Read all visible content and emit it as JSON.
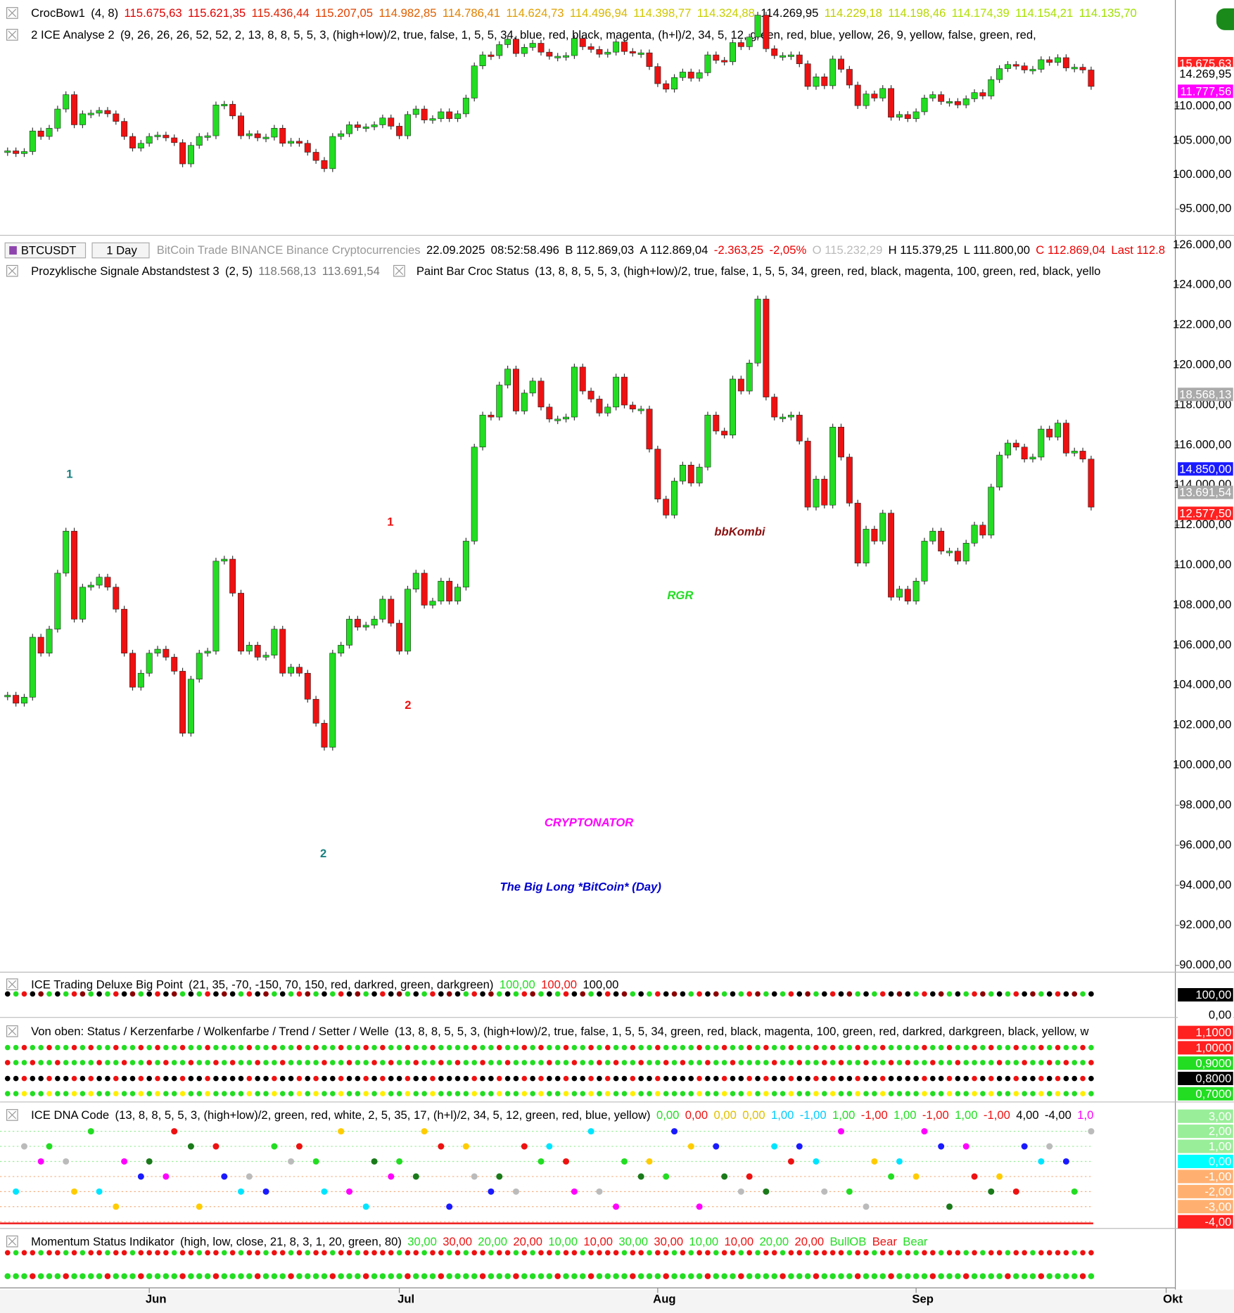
{
  "header": {
    "crocbow": {
      "name": "CrocBow1",
      "params": "(4, 8)",
      "values": [
        "115.675,63",
        "115.621,35",
        "115.436,44",
        "115.207,05",
        "114.982,85",
        "114.786,41",
        "114.624,73",
        "114.496,94",
        "114.398,77",
        "114.324,88",
        "114.269,95",
        "114.229,18",
        "114.198,46",
        "114.174,39",
        "114.154,21",
        "114.135,70"
      ]
    },
    "ice_analyse": {
      "name": "2 ICE Analyse 2",
      "params": "(9, 26, 26, 26, 52, 52, 2, 13, 8, 8, 5, 5, 3, (high+low)/2, true, false, 1, 5, 5, 34, blue, red, black, magenta, (h+l)/2, 34, 5, 12, green, red, blue, yellow, 26, 9, yellow, false, green, red,"
    },
    "price_tags": [
      "15.675,63",
      "14.269,95",
      "11.777,56"
    ]
  },
  "symbol_bar": {
    "symbol": "BTCUSDT",
    "interval": "1 Day",
    "description": "BitCoin Trade BINANCE Binance Cryptocurrencies",
    "date": "22.09.2025",
    "time": "08:52:58.496",
    "bid": "B 112.869,03",
    "ask": "A 112.869,04",
    "change": "-2.363,25",
    "change_pct": "-2,05%",
    "open": "O 115.232,29",
    "high": "H 115.379,25",
    "low": "L 111.800,00",
    "close": "C 112.869,04",
    "last": "Last 112.8"
  },
  "indicators": {
    "prozyklisch": {
      "name": "Prozyklische Signale Abstandstest 3",
      "params": "(2, 5)",
      "values": [
        "118.568,13",
        "113.691,54"
      ]
    },
    "paint_bar": {
      "name": "Paint Bar Croc Status",
      "params": "(13, 8, 8, 5, 5, 3, (high+low)/2, true, false, 1, 5, 5, 34, green, red, black, magenta, 100, green, red, black, yello"
    }
  },
  "chart_data": {
    "type": "candlestick",
    "categories": [
      null,
      null,
      null,
      null,
      null,
      null,
      null,
      null,
      null,
      null,
      null,
      null,
      null,
      null,
      null,
      null,
      null,
      "Jun",
      null,
      null,
      null,
      null,
      null,
      null,
      null,
      null,
      null,
      null,
      null,
      null,
      null,
      null,
      null,
      null,
      null,
      null,
      null,
      null,
      null,
      null,
      null,
      null,
      null,
      null,
      null,
      null,
      null,
      "Jul",
      null,
      null,
      null,
      null,
      null,
      null,
      null,
      null,
      null,
      null,
      null,
      null,
      null,
      null,
      null,
      null,
      null,
      null,
      null,
      null,
      null,
      null,
      null,
      null,
      null,
      null,
      null,
      null,
      null,
      null,
      "Aug",
      null,
      null,
      null,
      null,
      null,
      null,
      null,
      null,
      null,
      null,
      null,
      null,
      null,
      null,
      null,
      null,
      null,
      null,
      null,
      null,
      null,
      null,
      null,
      null,
      null,
      null,
      null,
      null,
      null,
      null,
      "Sep",
      null,
      null,
      null,
      null,
      null,
      null,
      null,
      null,
      null,
      null,
      null,
      null,
      null,
      null,
      null,
      null,
      null,
      null,
      null,
      null,
      null,
      null,
      null,
      null,
      null,
      null,
      null,
      null,
      null,
      "Okt"
    ],
    "values": [
      103500,
      103100,
      103400,
      106400,
      105600,
      106800,
      109600,
      111700,
      107300,
      108900,
      109000,
      109400,
      108900,
      107800,
      105600,
      103900,
      104600,
      105600,
      105800,
      105400,
      104700,
      101600,
      104300,
      105600,
      105700,
      110200,
      110300,
      108600,
      105700,
      106000,
      105400,
      105500,
      106800,
      104600,
      104900,
      104600,
      103300,
      102100,
      100900,
      105600,
      106000,
      107300,
      106900,
      107000,
      107300,
      108300,
      107100,
      105700,
      108800,
      109600,
      108000,
      108200,
      109200,
      108200,
      108900,
      111200,
      115900,
      117500,
      117400,
      119000,
      119800,
      117700,
      118600,
      119200,
      117900,
      117300,
      117300,
      117400,
      119900,
      118700,
      118300,
      117600,
      117900,
      119400,
      118000,
      117800,
      117800,
      115800,
      113300,
      112500,
      114200,
      115000,
      114100,
      114900,
      117500,
      116700,
      116500,
      119300,
      118700,
      120100,
      123300,
      118400,
      117400,
      117400,
      117500,
      116200,
      112900,
      114300,
      113000,
      116900,
      115400,
      113100,
      110100,
      111800,
      111200,
      112600,
      108400,
      108800,
      108200,
      109200,
      111200,
      111700,
      110700,
      110700,
      110200,
      111100,
      112000,
      111500,
      113900,
      115500,
      116100,
      115900,
      115300,
      115400,
      116800,
      116400,
      117100,
      115600,
      115700,
      115300,
      112900,
      null,
      null,
      null,
      null,
      null,
      null,
      null,
      null,
      null
    ],
    "up_color": "#22dd22",
    "down_color": "#ee1111",
    "ylim": [
      89700,
      126400
    ],
    "yticks": [
      {
        "value": 90000,
        "label": "90.000,00"
      },
      {
        "value": 92000,
        "label": "92.000,00"
      },
      {
        "value": 94000,
        "label": "94.000,00"
      },
      {
        "value": 96000,
        "label": "96.000,00"
      },
      {
        "value": 98000,
        "label": "98.000,00"
      },
      {
        "value": 100000,
        "label": "100.000,00"
      },
      {
        "value": 102000,
        "label": "102.000,00"
      },
      {
        "value": 104000,
        "label": "104.000,00"
      },
      {
        "value": 106000,
        "label": "106.000,00"
      },
      {
        "value": 108000,
        "label": "108.000,00"
      },
      {
        "value": 110000,
        "label": "110.000,00"
      },
      {
        "value": 112000,
        "label": "112.000,00"
      },
      {
        "value": 114000,
        "label": "114.000,00"
      },
      {
        "value": 116000,
        "label": "116.000,00"
      },
      {
        "value": 118000,
        "label": "118.000,00"
      },
      {
        "value": 120000,
        "label": "120.000,00"
      },
      {
        "value": 122000,
        "label": "122.000,00"
      },
      {
        "value": 124000,
        "label": "124.000,00"
      },
      {
        "value": 126000,
        "label": "126.000,00"
      }
    ],
    "upper_ylim": [
      91300,
      124900
    ],
    "upper_yticks": [
      {
        "value": 95000,
        "label": "95.000,00"
      },
      {
        "value": 100000,
        "label": "100.000,00"
      },
      {
        "value": 105000,
        "label": "105.000,00"
      },
      {
        "value": 110000,
        "label": "110.000,00"
      }
    ],
    "annotations": [
      "1",
      "2",
      "1",
      "2",
      "bbKombi",
      "RGR"
    ],
    "title": "CRYPTONATOR",
    "subtitle": "The Big Long *BitCoin* (Day)",
    "price_tags": [
      "18.568,13",
      "14.850,00",
      "13.691,54",
      "12.577,50"
    ]
  },
  "panels": [
    {
      "name": "ICE Trading Deluxe Big Point",
      "params": "(21, 35, -70, -150, 70, 150, red, darkred, green, darkgreen)",
      "values": [
        "100,00",
        "100,00",
        "100,00"
      ],
      "axis": [
        "100,00",
        "0,00"
      ]
    },
    {
      "name": "Von oben: Status / Kerzenfarbe / Wolkenfarbe / Trend / Setter / Welle",
      "params": "(13, 8, 8, 5, 5, 3, (high+low)/2, true, false, 1, 5, 5, 34, green, red, black, magenta, 100, green, red, darkred, darkgreen, black, yellow, w",
      "values": [],
      "axis": [
        "1,1000",
        "1,0000",
        "0,9000",
        "0,8000",
        "0,7000"
      ]
    },
    {
      "name": "ICE DNA Code",
      "params": "(13, 8, 8, 5, 5, 3, (high+low)/2, green, red, white, 2, 5, 35, 17, (h+l)/2, 34, 5, 12, green, red, blue, yellow)",
      "values": [
        "0,00",
        "0,00",
        "0,00",
        "0,00",
        "1,00",
        "-1,00",
        "1,00",
        "-1,00",
        "1,00",
        "-1,00",
        "1,00",
        "-1,00",
        "4,00",
        "-4,00",
        "1,0"
      ],
      "axis": [
        "3,00",
        "2,00",
        "1,00",
        "0,00",
        "-1,00",
        "-2,00",
        "-3,00",
        "-4,00"
      ]
    },
    {
      "name": "Momentum Status Indikator",
      "params": "(high, low, close, 21, 8, 3, 1, 20, green, 80)",
      "values": [
        "30,00",
        "30,00",
        "20,00",
        "20,00",
        "10,00",
        "10,00",
        "30,00",
        "30,00",
        "10,00",
        "10,00",
        "20,00",
        "20,00",
        "BullOB",
        "Bear",
        "Bear"
      ],
      "axis": []
    }
  ]
}
